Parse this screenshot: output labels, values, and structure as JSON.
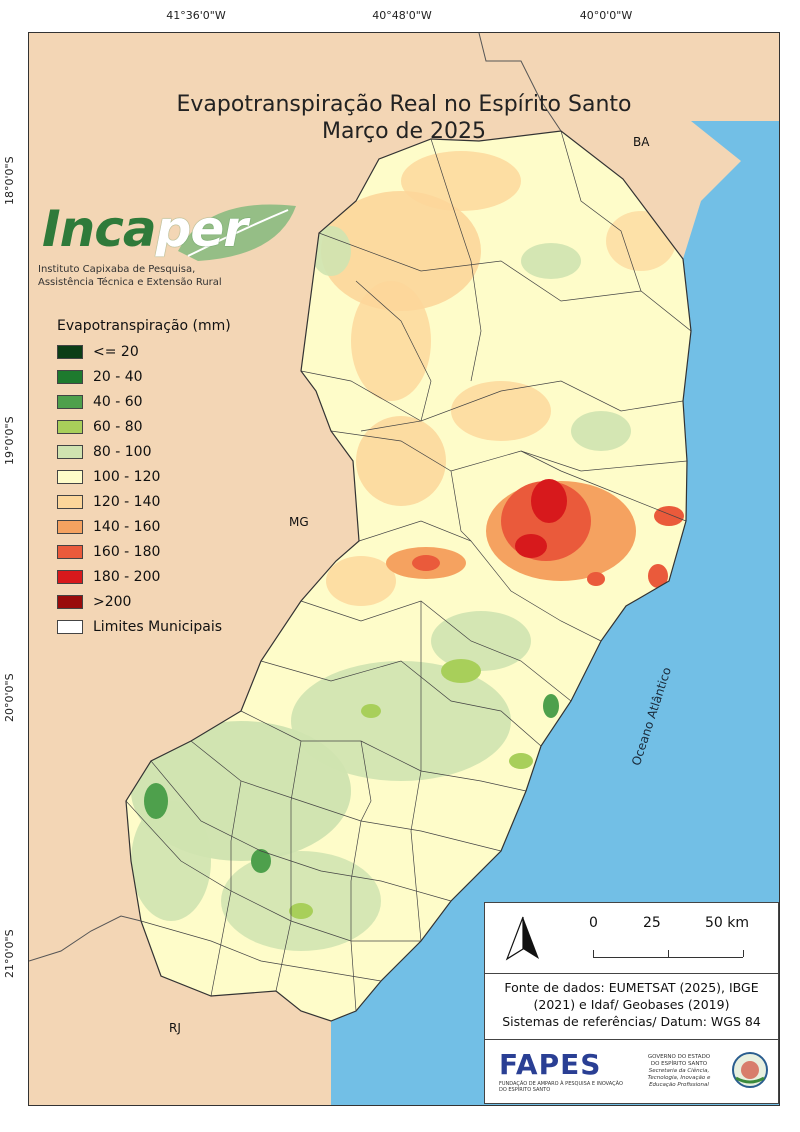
{
  "map": {
    "title_line1": "Evapotranspiração Real no Espírito Santo",
    "title_line2": "Março de 2025",
    "coords_top": [
      "41°36'0\"W",
      "40°48'0\"W",
      "40°0'0\"W"
    ],
    "coords_left": [
      "18°0'0\"S",
      "19°0'0\"S",
      "20°0'0\"S",
      "21°0'0\"S"
    ],
    "region_labels": {
      "ba": "BA",
      "mg": "MG",
      "rj": "RJ"
    },
    "ocean_label": "Oceano Atlântico"
  },
  "logo": {
    "name_part1": "Inca",
    "name_part2": "per",
    "subtitle_line1": "Instituto Capixaba de Pesquisa,",
    "subtitle_line2": "Assistência Técnica e Extensão Rural"
  },
  "legend": {
    "title": "Evapotranspiração (mm)",
    "items": [
      {
        "label": "<= 20",
        "color": "#0b3d16"
      },
      {
        "label": "20 - 40",
        "color": "#1e7a2e"
      },
      {
        "label": "40 - 60",
        "color": "#4ea04c"
      },
      {
        "label": "60 - 80",
        "color": "#a8cf5a"
      },
      {
        "label": "80 - 100",
        "color": "#cfe3b0"
      },
      {
        "label": "100 - 120",
        "color": "#fefcc9"
      },
      {
        "label": "120 - 140",
        "color": "#fcd69a"
      },
      {
        "label": "140 - 160",
        "color": "#f5a260"
      },
      {
        "label": "160 - 180",
        "color": "#ea5a3b"
      },
      {
        "label": "180 - 200",
        "color": "#d7191c"
      },
      {
        "label": ">200",
        "color": "#990b0b"
      },
      {
        "label": "Limites Municipais",
        "color": "#ffffff"
      }
    ]
  },
  "colors": {
    "ocean": "#72bfe6",
    "neighbor_land": "#f3d6b5"
  },
  "scale": {
    "labels": [
      "0",
      "25",
      "50 km"
    ]
  },
  "source": {
    "line1": "Fonte de dados: EUMETSAT (2025), IBGE",
    "line2": "(2021) e Idaf/ Geobases (2019)",
    "line3": "Sistemas de referências/ Datum: WGS 84"
  },
  "partners": {
    "fapes_name": "FAPES",
    "fapes_sub": "FUNDAÇÃO DE AMPARO À PESQUISA E INOVAÇÃO DO ESPÍRITO SANTO",
    "gov_line1": "GOVERNO DO ESTADO",
    "gov_line2": "DO ESPÍRITO SANTO",
    "gov_line3": "Secretaria da Ciência, Tecnologia, Inovação e Educação Profissional"
  }
}
